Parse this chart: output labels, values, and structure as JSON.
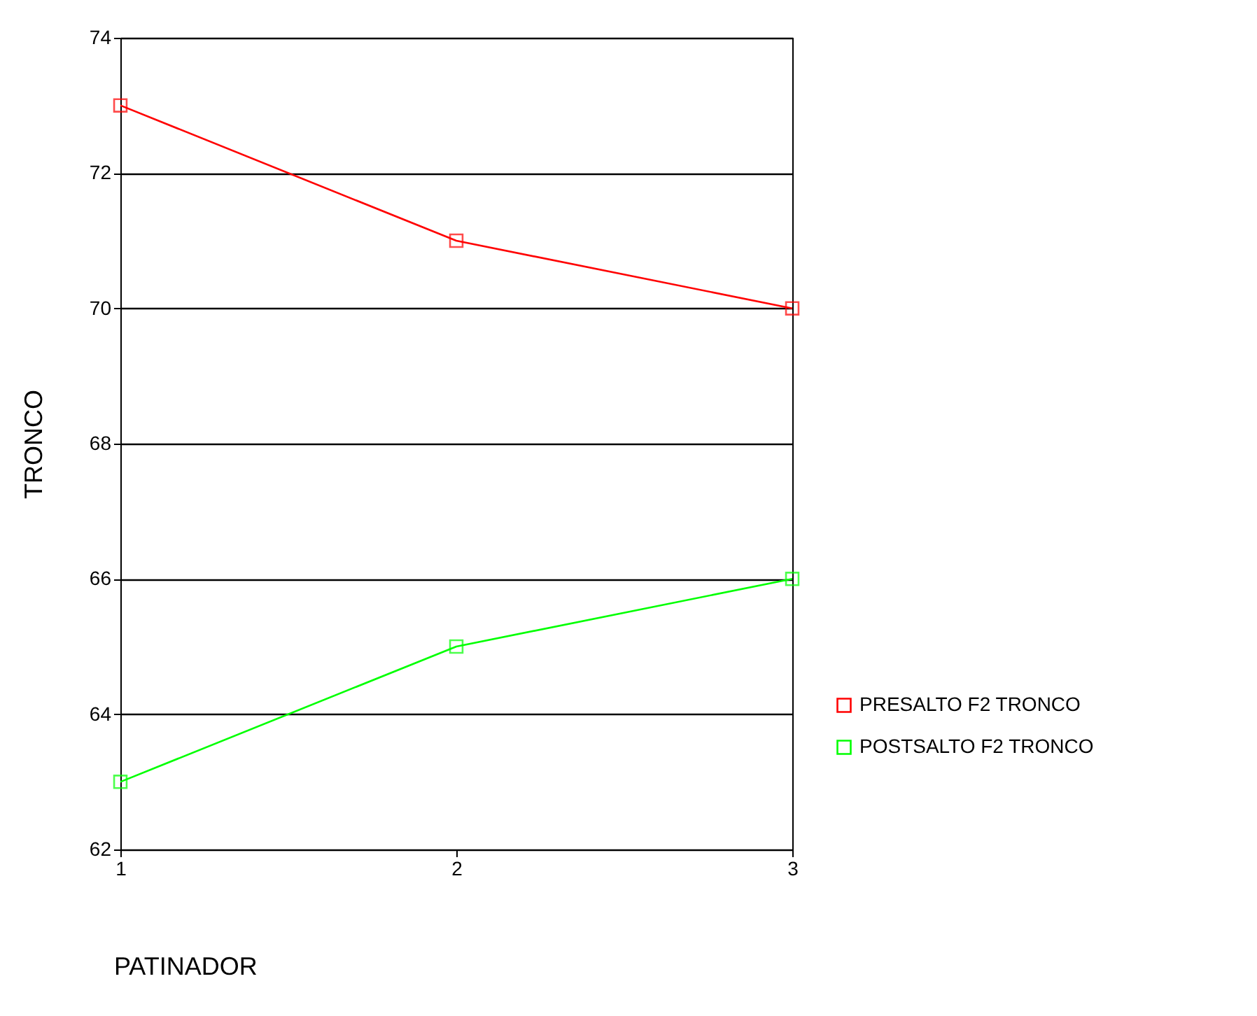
{
  "chart_data": {
    "type": "line",
    "xlabel": "PATINADOR",
    "ylabel": "TRONCO",
    "x": [
      1,
      2,
      3
    ],
    "series": [
      {
        "name": "PRESALTO F2 TRONCO",
        "color": "#ff0000",
        "values": [
          73,
          71,
          70
        ]
      },
      {
        "name": "POSTSALTO F2 TRONCO",
        "color": "#00ff00",
        "values": [
          63,
          65,
          66
        ]
      }
    ],
    "xlim": [
      1,
      3
    ],
    "xticks": [
      1,
      2,
      3
    ],
    "ylim": [
      62,
      74
    ],
    "yticks": [
      62,
      64,
      66,
      68,
      70,
      72,
      74
    ],
    "grid": "y",
    "legend": "bottom right",
    "marker": "square",
    "line_style": "solid"
  }
}
